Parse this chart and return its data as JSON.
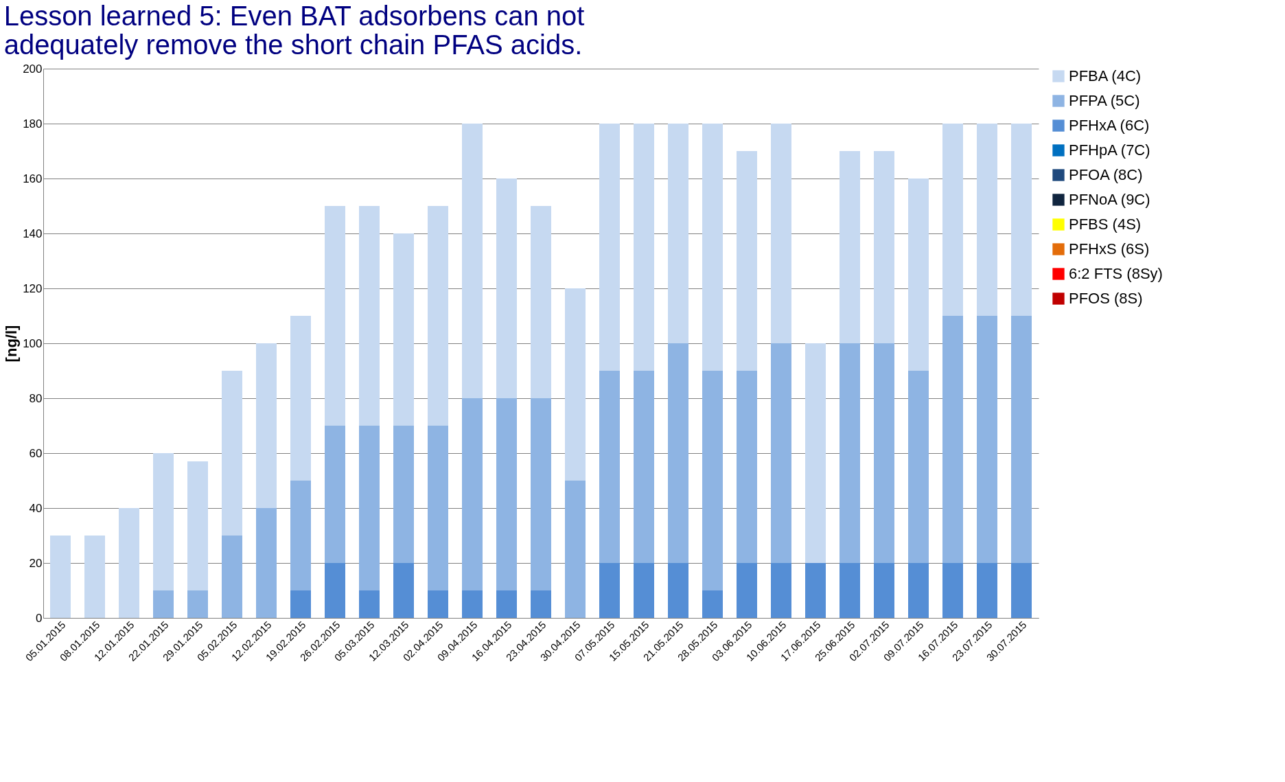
{
  "chart_data": {
    "type": "bar",
    "stacked": true,
    "title": "Lesson learned 5: Even BAT adsorbens can not\nadequately remove the short chain PFAS acids.",
    "ylabel": "[ng/l]",
    "categories": [
      "05.01.2015",
      "08.01.2015",
      "12.01.2015",
      "22.01.2015",
      "29.01.2015",
      "05.02.2015",
      "12.02.2015",
      "19.02.2015",
      "26.02.2015",
      "05.03.2015",
      "12.03.2015",
      "02.04.2015",
      "09.04.2015",
      "16.04.2015",
      "23.04.2015",
      "30.04.2015",
      "07.05.2015",
      "15.05.2015",
      "21.05.2015",
      "28.05.2015",
      "03.06.2015",
      "10.06.2015",
      "17.06.2015",
      "25.06.2015",
      "02.07.2015",
      "09.07.2015",
      "16.07.2015",
      "23.07.2015",
      "30.07.2015"
    ],
    "series": [
      {
        "name": "PFOS (8S)",
        "color": "#c00000",
        "values": [
          null,
          null,
          null,
          null,
          null,
          null,
          null,
          null,
          null,
          null,
          null,
          null,
          null,
          null,
          null,
          null,
          null,
          null,
          null,
          null,
          null,
          null,
          null,
          null,
          null,
          null,
          null,
          null,
          null
        ]
      },
      {
        "name": "6:2 FTS (8Sy)",
        "color": "#ff0000",
        "values": [
          null,
          null,
          null,
          null,
          null,
          null,
          null,
          null,
          null,
          null,
          null,
          null,
          null,
          null,
          null,
          null,
          null,
          null,
          null,
          null,
          null,
          null,
          null,
          null,
          null,
          null,
          null,
          null,
          null
        ]
      },
      {
        "name": "PFHxS (6S)",
        "color": "#e36c09",
        "values": [
          null,
          null,
          null,
          null,
          null,
          null,
          null,
          null,
          null,
          null,
          null,
          null,
          null,
          null,
          null,
          null,
          null,
          null,
          null,
          null,
          null,
          null,
          null,
          null,
          null,
          null,
          null,
          null,
          null
        ]
      },
      {
        "name": "PFBS (4S)",
        "color": "#ffff00",
        "values": [
          null,
          null,
          null,
          null,
          null,
          null,
          null,
          null,
          null,
          null,
          null,
          null,
          null,
          null,
          null,
          null,
          null,
          null,
          null,
          null,
          null,
          null,
          null,
          null,
          null,
          null,
          null,
          null,
          null
        ]
      },
      {
        "name": "PFNoA (9C)",
        "color": "#10253f",
        "values": [
          null,
          null,
          null,
          null,
          null,
          null,
          null,
          null,
          null,
          null,
          null,
          null,
          null,
          null,
          null,
          null,
          null,
          null,
          null,
          null,
          null,
          null,
          null,
          null,
          null,
          null,
          null,
          null,
          null
        ]
      },
      {
        "name": "PFOA (8C)",
        "color": "#1f497d",
        "values": [
          null,
          null,
          null,
          null,
          null,
          null,
          null,
          null,
          null,
          null,
          null,
          null,
          null,
          null,
          null,
          null,
          null,
          null,
          null,
          null,
          null,
          null,
          null,
          null,
          null,
          null,
          null,
          null,
          null
        ]
      },
      {
        "name": "PFHpA (7C)",
        "color": "#0070c0",
        "values": [
          null,
          null,
          null,
          null,
          null,
          null,
          null,
          null,
          null,
          null,
          null,
          null,
          null,
          null,
          null,
          null,
          null,
          null,
          null,
          null,
          null,
          null,
          null,
          null,
          null,
          null,
          null,
          null,
          null
        ]
      },
      {
        "name": "PFHxA (6C)",
        "color": "#558ed5",
        "values": [
          null,
          null,
          null,
          null,
          null,
          null,
          null,
          10,
          20,
          10,
          20,
          10,
          10,
          10,
          10,
          null,
          20,
          20,
          20,
          10,
          20,
          20,
          20,
          20,
          20,
          20,
          20,
          20,
          20
        ]
      },
      {
        "name": "PFPA (5C)",
        "color": "#8eb4e3",
        "values": [
          null,
          null,
          null,
          10,
          10,
          30,
          40,
          40,
          50,
          60,
          50,
          60,
          70,
          70,
          70,
          50,
          70,
          70,
          80,
          80,
          70,
          80,
          null,
          80,
          80,
          70,
          90,
          90,
          90
        ]
      },
      {
        "name": "PFBA (4C)",
        "color": "#c6d9f1",
        "values": [
          30,
          30,
          40,
          50,
          47,
          60,
          60,
          60,
          80,
          80,
          70,
          80,
          100,
          80,
          70,
          70,
          90,
          90,
          80,
          90,
          80,
          80,
          80,
          70,
          70,
          70,
          70,
          70,
          70
        ]
      }
    ],
    "ylim": [
      0,
      200
    ],
    "yticks": [
      0,
      20,
      40,
      60,
      80,
      100,
      120,
      140,
      160,
      180,
      200
    ],
    "grid": "y",
    "legend": "right"
  }
}
